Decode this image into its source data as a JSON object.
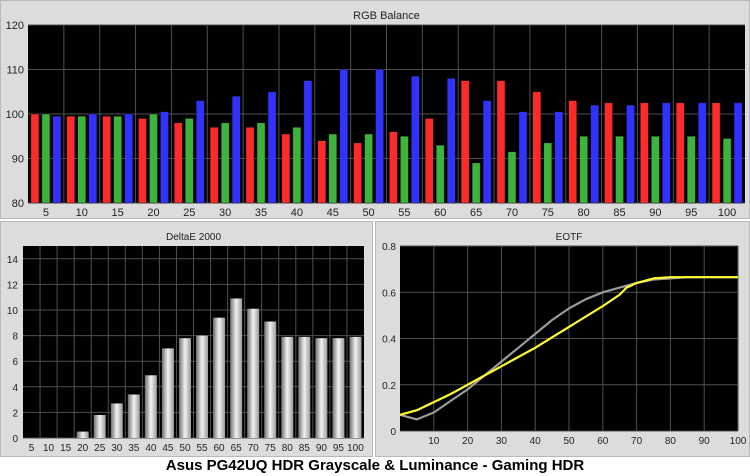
{
  "caption": "Asus PG42UQ HDR Grayscale & Luminance - Gaming HDR",
  "colors": {
    "red": "#ff2b2b",
    "green": "#3cb43c",
    "blue": "#3232ff",
    "target": "#ffff33",
    "measured": "#9a9a9a",
    "plot_bg": "#000000",
    "panel_bg": "#dcdcdc",
    "grid": "#505050"
  },
  "chart_data": [
    {
      "type": "bar",
      "title": "RGB Balance",
      "ylim": [
        80,
        120
      ],
      "yticks": [
        80,
        90,
        100,
        110,
        120
      ],
      "categories": [
        "5",
        "10",
        "15",
        "20",
        "25",
        "30",
        "35",
        "40",
        "45",
        "50",
        "55",
        "60",
        "65",
        "70",
        "75",
        "80",
        "85",
        "90",
        "95",
        "100"
      ],
      "series": [
        {
          "color": "red",
          "values": [
            100,
            99.5,
            99.5,
            99,
            98,
            97,
            97,
            95.5,
            94,
            93.5,
            96,
            99,
            107.5,
            107.5,
            105,
            103,
            102.5,
            102.5,
            102.5,
            102.5
          ]
        },
        {
          "color": "green",
          "values": [
            100,
            99.5,
            99.5,
            100,
            99,
            98,
            98,
            97,
            95.5,
            95.5,
            95,
            93,
            89,
            91.5,
            93.5,
            95,
            95,
            95,
            95,
            94.5
          ]
        },
        {
          "color": "blue",
          "values": [
            99.5,
            100,
            100,
            100.5,
            103,
            104,
            105,
            107.5,
            110,
            110,
            108.5,
            108,
            103,
            100.5,
            100.5,
            102,
            102,
            102.5,
            102.5,
            102.5
          ]
        }
      ],
      "grid": true
    },
    {
      "type": "bar",
      "title": "DeltaE 2000",
      "ylim": [
        0,
        15
      ],
      "yticks": [
        0,
        2,
        4,
        6,
        8,
        10,
        12,
        14
      ],
      "categories": [
        "5",
        "10",
        "15",
        "20",
        "25",
        "30",
        "35",
        "40",
        "45",
        "50",
        "55",
        "60",
        "65",
        "70",
        "75",
        "80",
        "85",
        "90",
        "95",
        "100"
      ],
      "values": [
        0,
        0,
        0,
        0.5,
        1.8,
        2.7,
        3.4,
        4.9,
        7,
        7.8,
        8,
        9.4,
        10.9,
        10.1,
        9.1,
        7.9,
        7.9,
        7.8,
        7.8,
        7.9
      ],
      "grid": true
    },
    {
      "type": "line",
      "title": "EOTF",
      "xlim": [
        0,
        100
      ],
      "ylim": [
        0,
        0.8
      ],
      "xticks": [
        10,
        20,
        30,
        40,
        50,
        60,
        70,
        80,
        90,
        100
      ],
      "yticks": [
        0,
        0.2,
        0.4,
        0.6,
        0.8
      ],
      "ytick_labels": [
        "0",
        "0.2",
        "0.4",
        "0.6",
        "0.8"
      ],
      "series": [
        {
          "color": "target",
          "x": [
            0,
            5,
            10,
            15,
            20,
            25,
            30,
            35,
            40,
            45,
            50,
            55,
            60,
            65,
            67,
            70,
            75,
            80,
            85,
            90,
            95,
            100
          ],
          "y": [
            0.07,
            0.09,
            0.125,
            0.16,
            0.2,
            0.24,
            0.28,
            0.32,
            0.36,
            0.405,
            0.45,
            0.495,
            0.54,
            0.59,
            0.62,
            0.64,
            0.66,
            0.665,
            0.665,
            0.665,
            0.665,
            0.665
          ]
        },
        {
          "color": "measured",
          "x": [
            0,
            5,
            10,
            15,
            20,
            25,
            30,
            35,
            40,
            45,
            50,
            55,
            60,
            65,
            70,
            75,
            80,
            85,
            90,
            95,
            100
          ],
          "y": [
            0.07,
            0.05,
            0.08,
            0.13,
            0.18,
            0.24,
            0.3,
            0.36,
            0.42,
            0.48,
            0.53,
            0.57,
            0.6,
            0.62,
            0.64,
            0.655,
            0.66,
            0.665,
            0.665,
            0.665,
            0.665
          ]
        }
      ],
      "grid": true
    }
  ]
}
